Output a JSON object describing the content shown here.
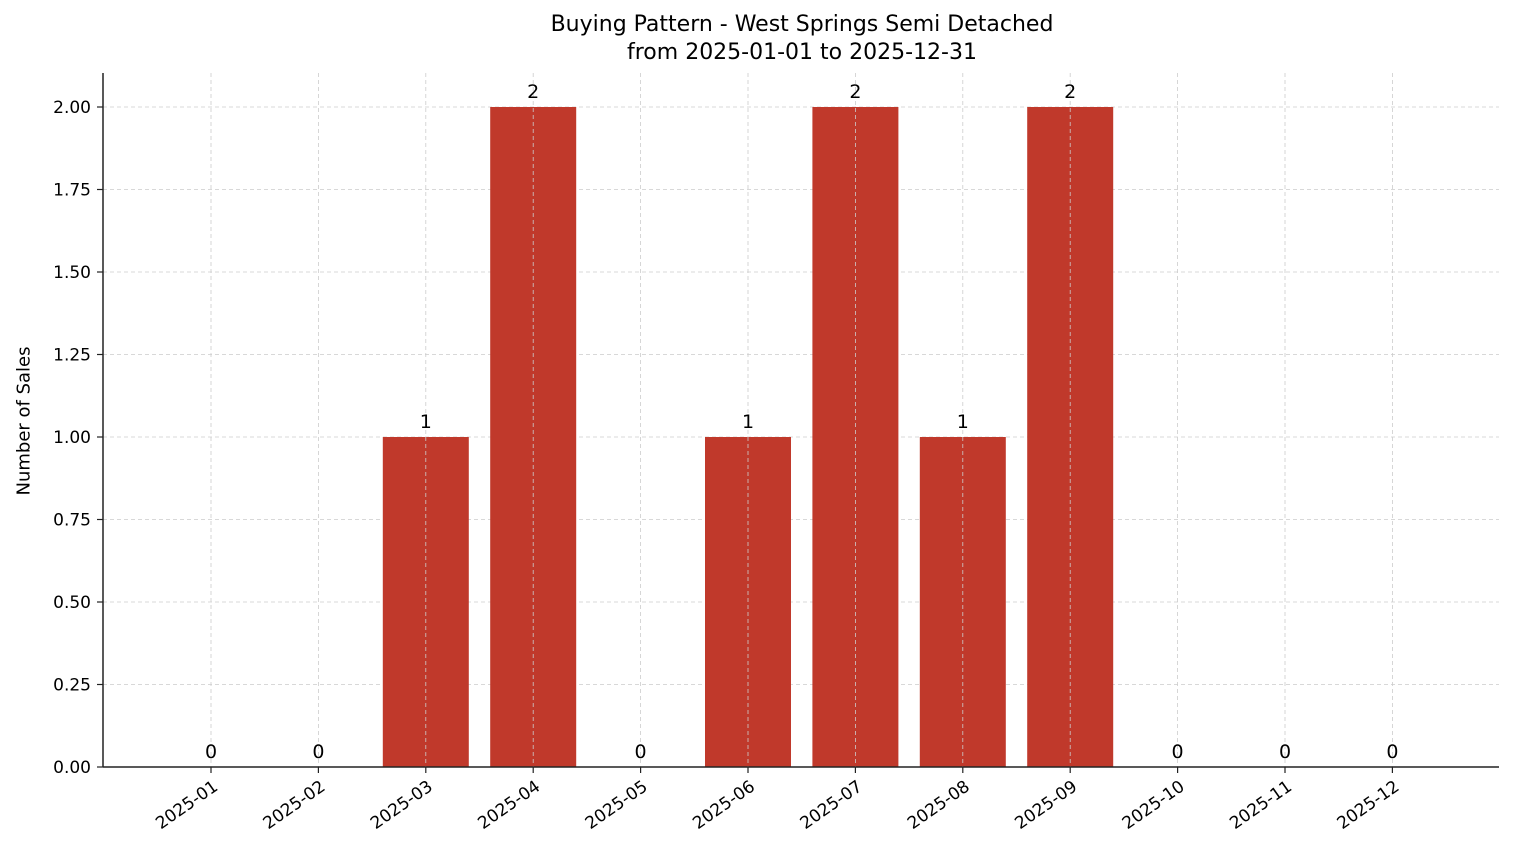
{
  "chart_data": {
    "type": "bar",
    "title": "Buying Pattern - West Springs Semi Detached",
    "subtitle": "from 2025-01-01 to 2025-12-31",
    "xlabel": "",
    "ylabel": "Number of Sales",
    "categories": [
      "2025-01",
      "2025-02",
      "2025-03",
      "2025-04",
      "2025-05",
      "2025-06",
      "2025-07",
      "2025-08",
      "2025-09",
      "2025-10",
      "2025-11",
      "2025-12"
    ],
    "values": [
      0,
      0,
      1,
      2,
      0,
      1,
      2,
      1,
      2,
      0,
      0,
      0
    ],
    "data_labels": [
      "0",
      "0",
      "1",
      "2",
      "0",
      "1",
      "2",
      "1",
      "2",
      "0",
      "0",
      "0"
    ],
    "ylim": [
      0,
      2.1
    ],
    "yticks": [
      "0.00",
      "0.25",
      "0.50",
      "0.75",
      "1.00",
      "1.25",
      "1.50",
      "1.75",
      "2.00"
    ],
    "grid": true,
    "legend": null,
    "bar_color": "#c0392b"
  }
}
